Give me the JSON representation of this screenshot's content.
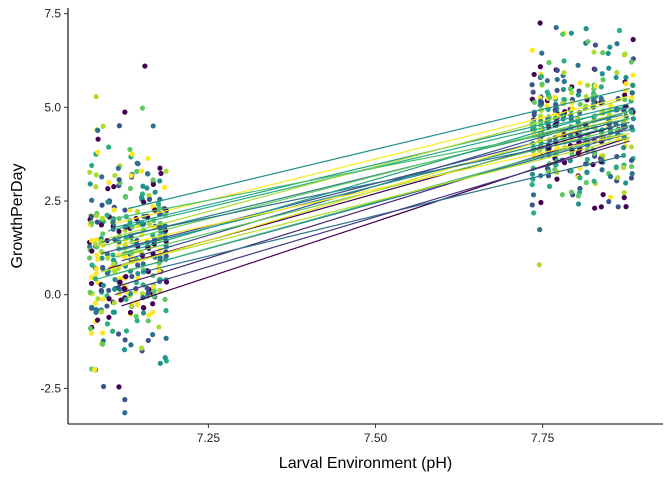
{
  "chart_data": {
    "type": "scatter",
    "title": "",
    "xlabel": "Larval Environment (pH)",
    "ylabel": "GrowthPerDay",
    "xlim": [
      7.04,
      7.93
    ],
    "ylim": [
      -3.45,
      7.65
    ],
    "x_ticks": [
      7.25,
      7.5,
      7.75
    ],
    "x_tick_labels": [
      "7.25",
      "7.50",
      "7.75"
    ],
    "y_ticks": [
      -2.5,
      0.0,
      2.5,
      5.0,
      7.5
    ],
    "y_tick_labels": [
      "-2.5",
      "0.0",
      "2.5",
      "5.0",
      "7.5"
    ],
    "grid": false,
    "legend": "none",
    "palette": [
      "#440154",
      "#3b528b",
      "#2c728e",
      "#21918c",
      "#28ae80",
      "#5ec962",
      "#addc30",
      "#fde725"
    ],
    "point_groups": [
      {
        "x_range": [
          7.07,
          7.19
        ],
        "y_mean": 1.2,
        "y_sd": 1.4,
        "count": 380
      },
      {
        "x_range": [
          7.73,
          7.89
        ],
        "y_mean": 4.5,
        "y_sd": 0.95,
        "count": 400
      }
    ],
    "extreme_points": [
      {
        "x": 7.155,
        "y": 6.1
      },
      {
        "x": 7.125,
        "y": -2.8
      },
      {
        "x": 7.125,
        "y": -3.15
      },
      {
        "x": 7.815,
        "y": 7.1
      },
      {
        "x": 7.865,
        "y": 7.05
      },
      {
        "x": 7.78,
        "y": 6.95
      },
      {
        "x": 7.745,
        "y": 0.8
      },
      {
        "x": 7.08,
        "y": -2.0
      },
      {
        "x": 7.085,
        "y": 4.15
      }
    ],
    "series": [
      {
        "x": [
          7.1,
          7.88
        ],
        "y": [
          0.7,
          4.6
        ],
        "color": "#440154"
      },
      {
        "x": [
          7.12,
          7.88
        ],
        "y": [
          -0.3,
          4.2
        ],
        "color": "#440154"
      },
      {
        "x": [
          7.11,
          7.87
        ],
        "y": [
          0.2,
          4.4
        ],
        "color": "#482878"
      },
      {
        "x": [
          7.09,
          7.88
        ],
        "y": [
          1.1,
          4.7
        ],
        "color": "#3e4a89"
      },
      {
        "x": [
          7.1,
          7.88
        ],
        "y": [
          0.5,
          4.3
        ],
        "color": "#31688e"
      },
      {
        "x": [
          7.12,
          7.88
        ],
        "y": [
          0.9,
          4.9
        ],
        "color": "#3b528b"
      },
      {
        "x": [
          7.09,
          7.87
        ],
        "y": [
          1.4,
          4.8
        ],
        "color": "#26828e"
      },
      {
        "x": [
          7.15,
          7.87
        ],
        "y": [
          0.6,
          3.7
        ],
        "color": "#2c728e"
      },
      {
        "x": [
          7.13,
          7.88
        ],
        "y": [
          2.3,
          5.5
        ],
        "color": "#21918c"
      },
      {
        "x": [
          7.11,
          7.88
        ],
        "y": [
          1.8,
          5.1
        ],
        "color": "#1f9e89"
      },
      {
        "x": [
          7.12,
          7.88
        ],
        "y": [
          1.2,
          4.6
        ],
        "color": "#21918c"
      },
      {
        "x": [
          7.08,
          7.87
        ],
        "y": [
          0.4,
          4.3
        ],
        "color": "#35b779"
      },
      {
        "x": [
          7.1,
          7.88
        ],
        "y": [
          1.7,
          5.0
        ],
        "color": "#28ae80"
      },
      {
        "x": [
          7.09,
          7.88
        ],
        "y": [
          1.3,
          4.9
        ],
        "color": "#6ece58"
      },
      {
        "x": [
          7.11,
          7.88
        ],
        "y": [
          1.0,
          4.5
        ],
        "color": "#5ec962"
      },
      {
        "x": [
          7.1,
          7.87
        ],
        "y": [
          1.5,
          5.2
        ],
        "color": "#addc30"
      },
      {
        "x": [
          7.12,
          7.88
        ],
        "y": [
          0.8,
          4.2
        ],
        "color": "#b5de2b"
      },
      {
        "x": [
          7.11,
          7.88
        ],
        "y": [
          1.9,
          5.3
        ],
        "color": "#fde725"
      },
      {
        "x": [
          7.09,
          7.88
        ],
        "y": [
          0.6,
          4.8
        ],
        "color": "#dde318"
      },
      {
        "x": [
          7.11,
          7.88
        ],
        "y": [
          0.0,
          4.1
        ],
        "color": "#443983"
      },
      {
        "x": [
          7.13,
          7.88
        ],
        "y": [
          1.6,
          4.4
        ],
        "color": "#2c728e"
      },
      {
        "x": [
          7.12,
          7.87
        ],
        "y": [
          1.1,
          5.0
        ],
        "color": "#1fa187"
      },
      {
        "x": [
          7.1,
          7.88
        ],
        "y": [
          2.0,
          4.7
        ],
        "color": "#4ac16d"
      },
      {
        "x": [
          7.11,
          7.88
        ],
        "y": [
          1.3,
          4.3
        ],
        "color": "#fde725"
      }
    ]
  }
}
